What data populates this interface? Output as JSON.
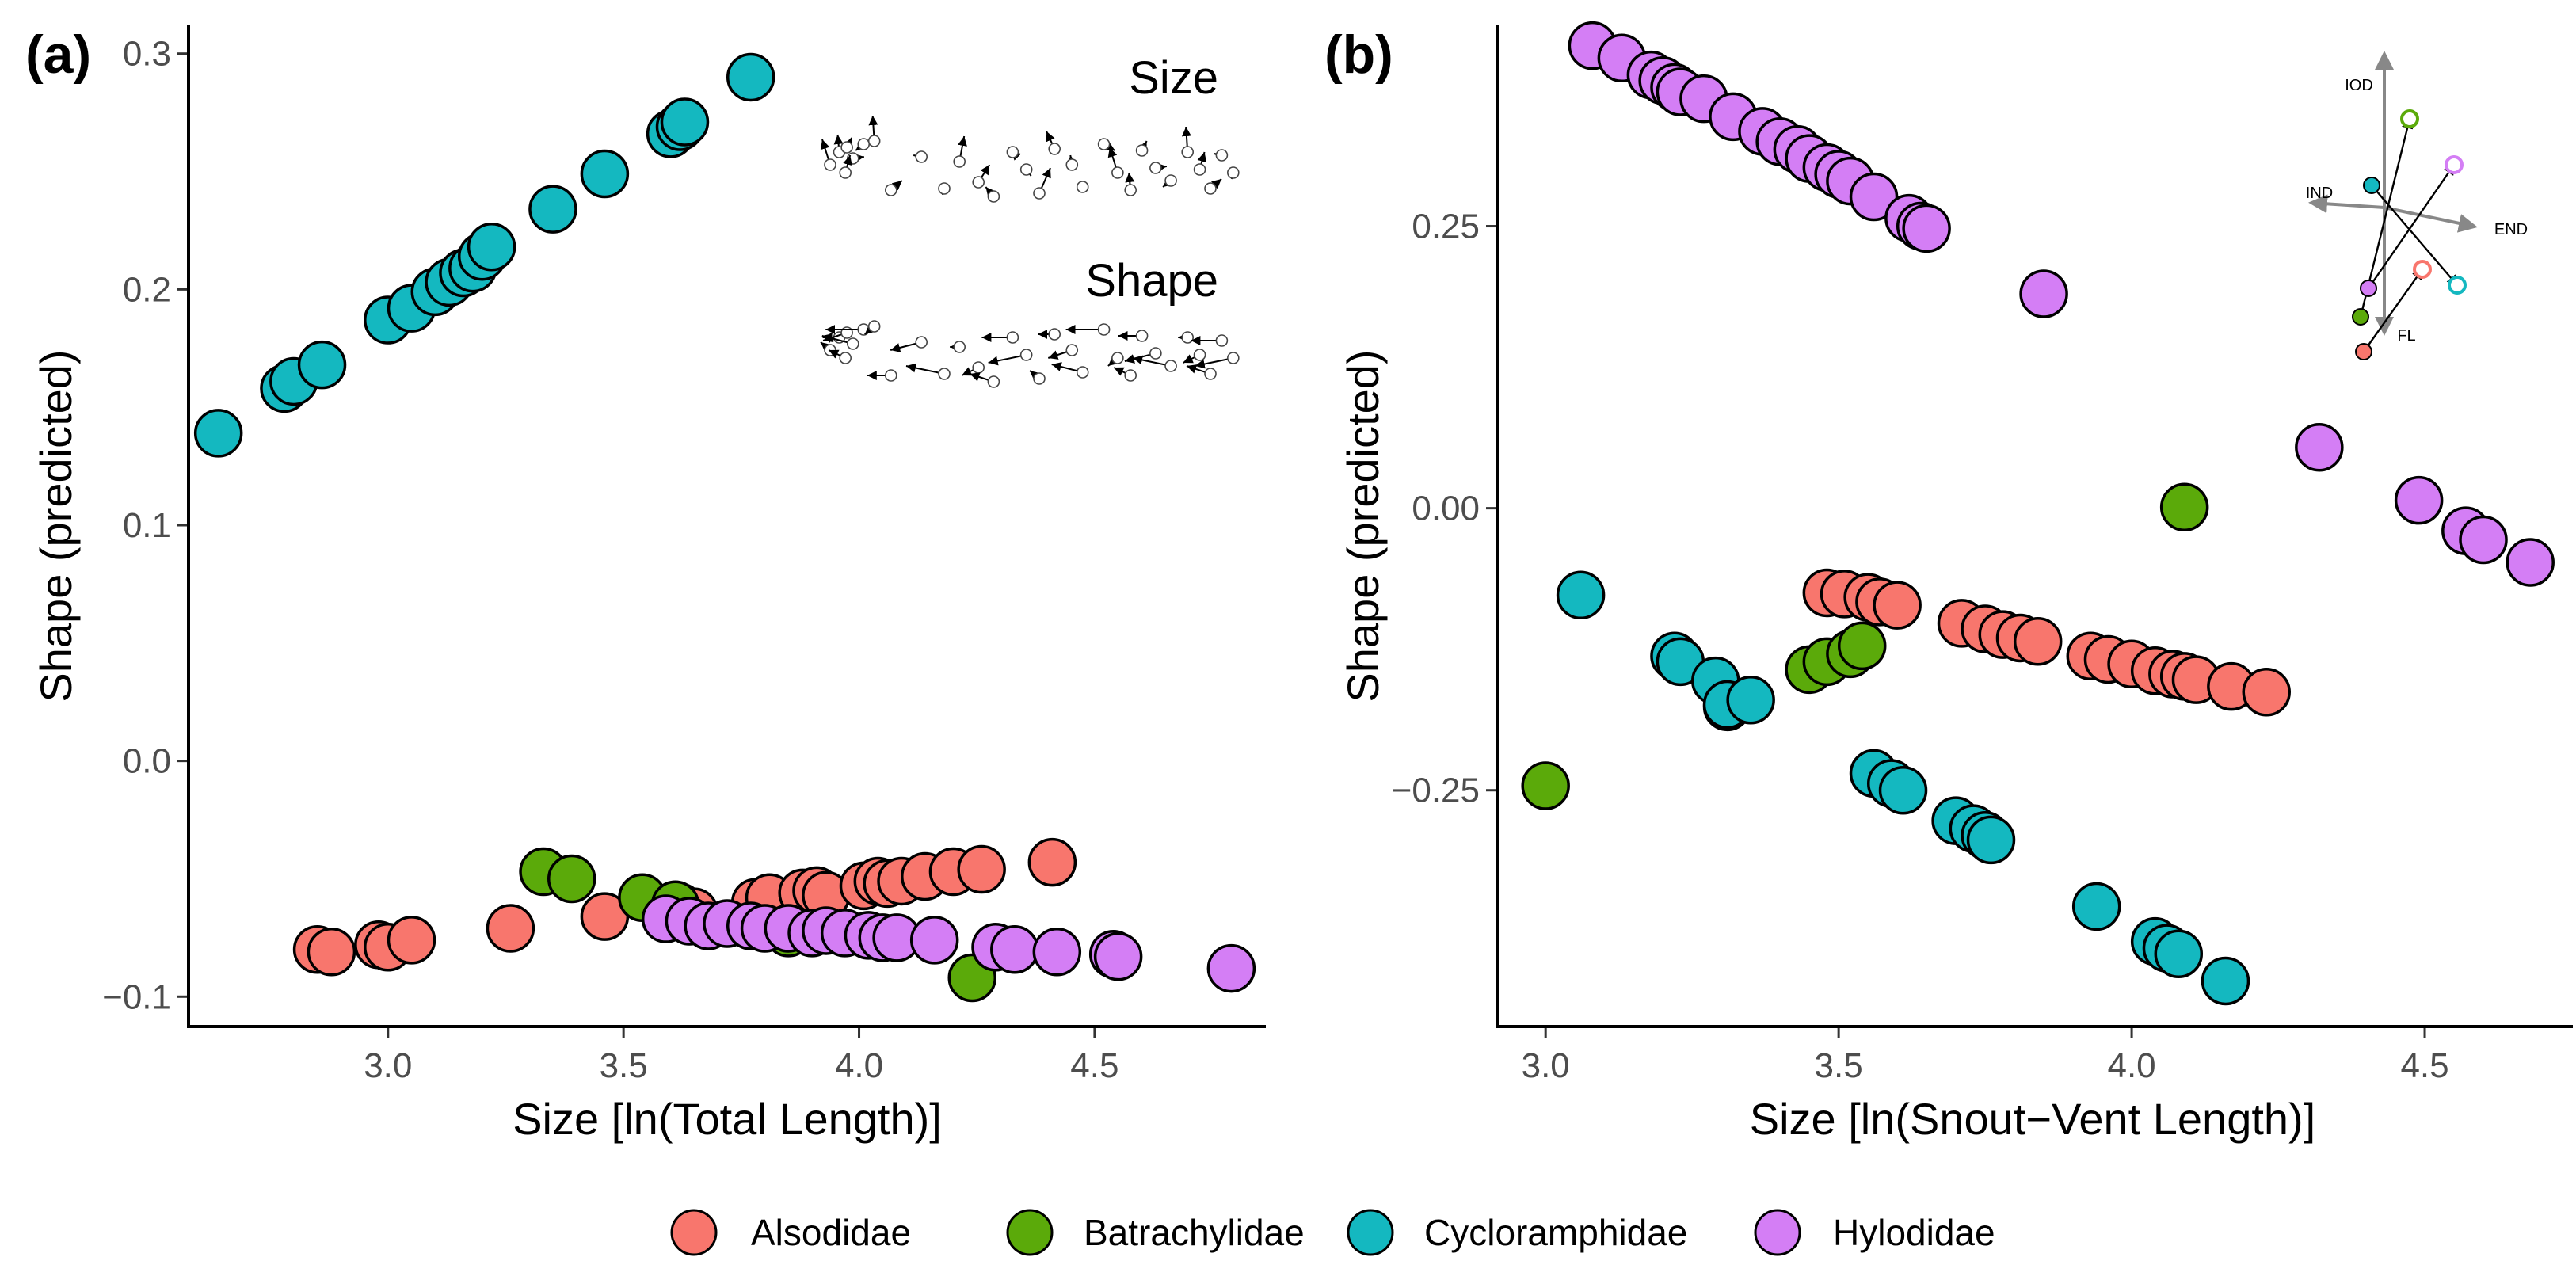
{
  "palette": {
    "Alsodidae": "#F8766D",
    "Batrachylidae": "#5BAA0A",
    "Cycloramphidae": "#14B8C0",
    "Hylodidae": "#D47EF5",
    "arrow": "#888888"
  },
  "legend": {
    "entries": [
      "Alsodidae",
      "Batrachylidae",
      "Cycloramphidae",
      "Hylodidae"
    ]
  },
  "chart_data": [
    {
      "type": "scatter",
      "panel_label": "(a)",
      "xlabel": "Size [ln(Total Length)]",
      "ylabel": "Shape (predicted)",
      "xlim": [
        2.58,
        4.86
      ],
      "ylim": [
        -0.112,
        0.312
      ],
      "xticks": [
        3.0,
        3.5,
        4.0,
        4.5
      ],
      "xtick_labels": [
        "3.0",
        "3.5",
        "4.0",
        "4.5"
      ],
      "yticks": [
        -0.1,
        0.0,
        0.1,
        0.2,
        0.3
      ],
      "ytick_labels": [
        "−0.1",
        "0.0",
        "0.1",
        "0.2",
        "0.3"
      ],
      "inset_labels": [
        "Size",
        "Shape"
      ],
      "series": [
        {
          "name": "Cycloramphidae",
          "x": [
            2.64,
            2.78,
            2.8,
            2.86,
            3.0,
            3.05,
            3.1,
            3.13,
            3.16,
            3.18,
            3.2,
            3.22,
            3.35,
            3.46,
            3.6,
            3.62,
            3.63,
            3.77
          ],
          "y": [
            0.139,
            0.158,
            0.161,
            0.168,
            0.187,
            0.192,
            0.199,
            0.203,
            0.207,
            0.209,
            0.214,
            0.218,
            0.234,
            0.249,
            0.266,
            0.269,
            0.271,
            0.29
          ]
        },
        {
          "name": "Alsodidae",
          "x": [
            2.85,
            2.88,
            2.98,
            3.0,
            3.05,
            3.26,
            3.46,
            3.62,
            3.65,
            3.78,
            3.81,
            3.88,
            3.91,
            3.93,
            4.01,
            4.04,
            4.06,
            4.09,
            4.14,
            4.2,
            4.26,
            4.41
          ],
          "y": [
            -0.08,
            -0.081,
            -0.078,
            -0.079,
            -0.076,
            -0.071,
            -0.066,
            -0.062,
            -0.064,
            -0.06,
            -0.058,
            -0.056,
            -0.055,
            -0.057,
            -0.053,
            -0.051,
            -0.052,
            -0.051,
            -0.049,
            -0.047,
            -0.046,
            -0.043
          ]
        },
        {
          "name": "Batrachylidae",
          "x": [
            3.33,
            3.39,
            3.54,
            3.61,
            3.85,
            4.24
          ],
          "y": [
            -0.047,
            -0.05,
            -0.058,
            -0.061,
            -0.073,
            -0.092
          ]
        },
        {
          "name": "Hylodidae",
          "x": [
            3.59,
            3.64,
            3.68,
            3.72,
            3.77,
            3.8,
            3.85,
            3.9,
            3.93,
            3.97,
            4.02,
            4.05,
            4.08,
            4.16,
            4.29,
            4.33,
            4.42,
            4.54,
            4.55,
            4.79
          ],
          "y": [
            -0.067,
            -0.068,
            -0.07,
            -0.069,
            -0.07,
            -0.071,
            -0.071,
            -0.073,
            -0.072,
            -0.073,
            -0.074,
            -0.075,
            -0.075,
            -0.076,
            -0.079,
            -0.08,
            -0.081,
            -0.082,
            -0.083,
            -0.088
          ]
        }
      ]
    },
    {
      "type": "scatter",
      "panel_label": "(b)",
      "xlabel": "Size [ln(Snout−Vent Length)]",
      "ylabel": "Shape (predicted)",
      "xlim": [
        2.92,
        4.75
      ],
      "ylim": [
        -0.458,
        0.428
      ],
      "xticks": [
        3.0,
        3.5,
        4.0,
        4.5
      ],
      "xtick_labels": [
        "3.0",
        "3.5",
        "4.0",
        "4.5"
      ],
      "yticks": [
        -0.25,
        0.0,
        0.25
      ],
      "ytick_labels": [
        "−0.25",
        "0.00",
        "0.25"
      ],
      "inset_labels": [
        "IOD",
        "IND",
        "END",
        "FL"
      ],
      "series": [
        {
          "name": "Hylodidae",
          "x": [
            3.08,
            3.13,
            3.18,
            3.2,
            3.22,
            3.23,
            3.27,
            3.32,
            3.37,
            3.4,
            3.43,
            3.45,
            3.48,
            3.5,
            3.52,
            3.56,
            3.62,
            3.64,
            3.65,
            3.85,
            4.32,
            4.49,
            4.57,
            4.6,
            4.68
          ],
          "y": [
            0.41,
            0.399,
            0.384,
            0.379,
            0.373,
            0.369,
            0.363,
            0.347,
            0.334,
            0.325,
            0.318,
            0.31,
            0.302,
            0.296,
            0.29,
            0.276,
            0.257,
            0.25,
            0.248,
            0.19,
            0.054,
            0.007,
            -0.02,
            -0.028,
            -0.048
          ]
        },
        {
          "name": "Alsodidae",
          "x": [
            3.48,
            3.51,
            3.55,
            3.57,
            3.6,
            3.71,
            3.75,
            3.78,
            3.81,
            3.84,
            3.93,
            3.96,
            4.0,
            4.04,
            4.07,
            4.09,
            4.11,
            4.17,
            4.23
          ],
          "y": [
            -0.075,
            -0.076,
            -0.079,
            -0.083,
            -0.086,
            -0.102,
            -0.107,
            -0.112,
            -0.115,
            -0.118,
            -0.131,
            -0.134,
            -0.138,
            -0.144,
            -0.147,
            -0.149,
            -0.152,
            -0.158,
            -0.163
          ]
        },
        {
          "name": "Batrachylidae",
          "x": [
            3.0,
            3.31,
            3.45,
            3.48,
            3.52,
            3.54,
            4.09
          ],
          "y": [
            -0.246,
            -0.176,
            -0.143,
            -0.136,
            -0.129,
            -0.122,
            0.001
          ]
        },
        {
          "name": "Cycloramphidae",
          "x": [
            3.06,
            3.22,
            3.23,
            3.29,
            3.31,
            3.35,
            3.56,
            3.59,
            3.61,
            3.7,
            3.73,
            3.75,
            3.76,
            3.94,
            4.04,
            4.06,
            4.08,
            4.16
          ],
          "y": [
            -0.077,
            -0.131,
            -0.136,
            -0.153,
            -0.174,
            -0.17,
            -0.235,
            -0.244,
            -0.25,
            -0.277,
            -0.284,
            -0.29,
            -0.294,
            -0.353,
            -0.384,
            -0.39,
            -0.395,
            -0.419
          ]
        }
      ]
    }
  ]
}
